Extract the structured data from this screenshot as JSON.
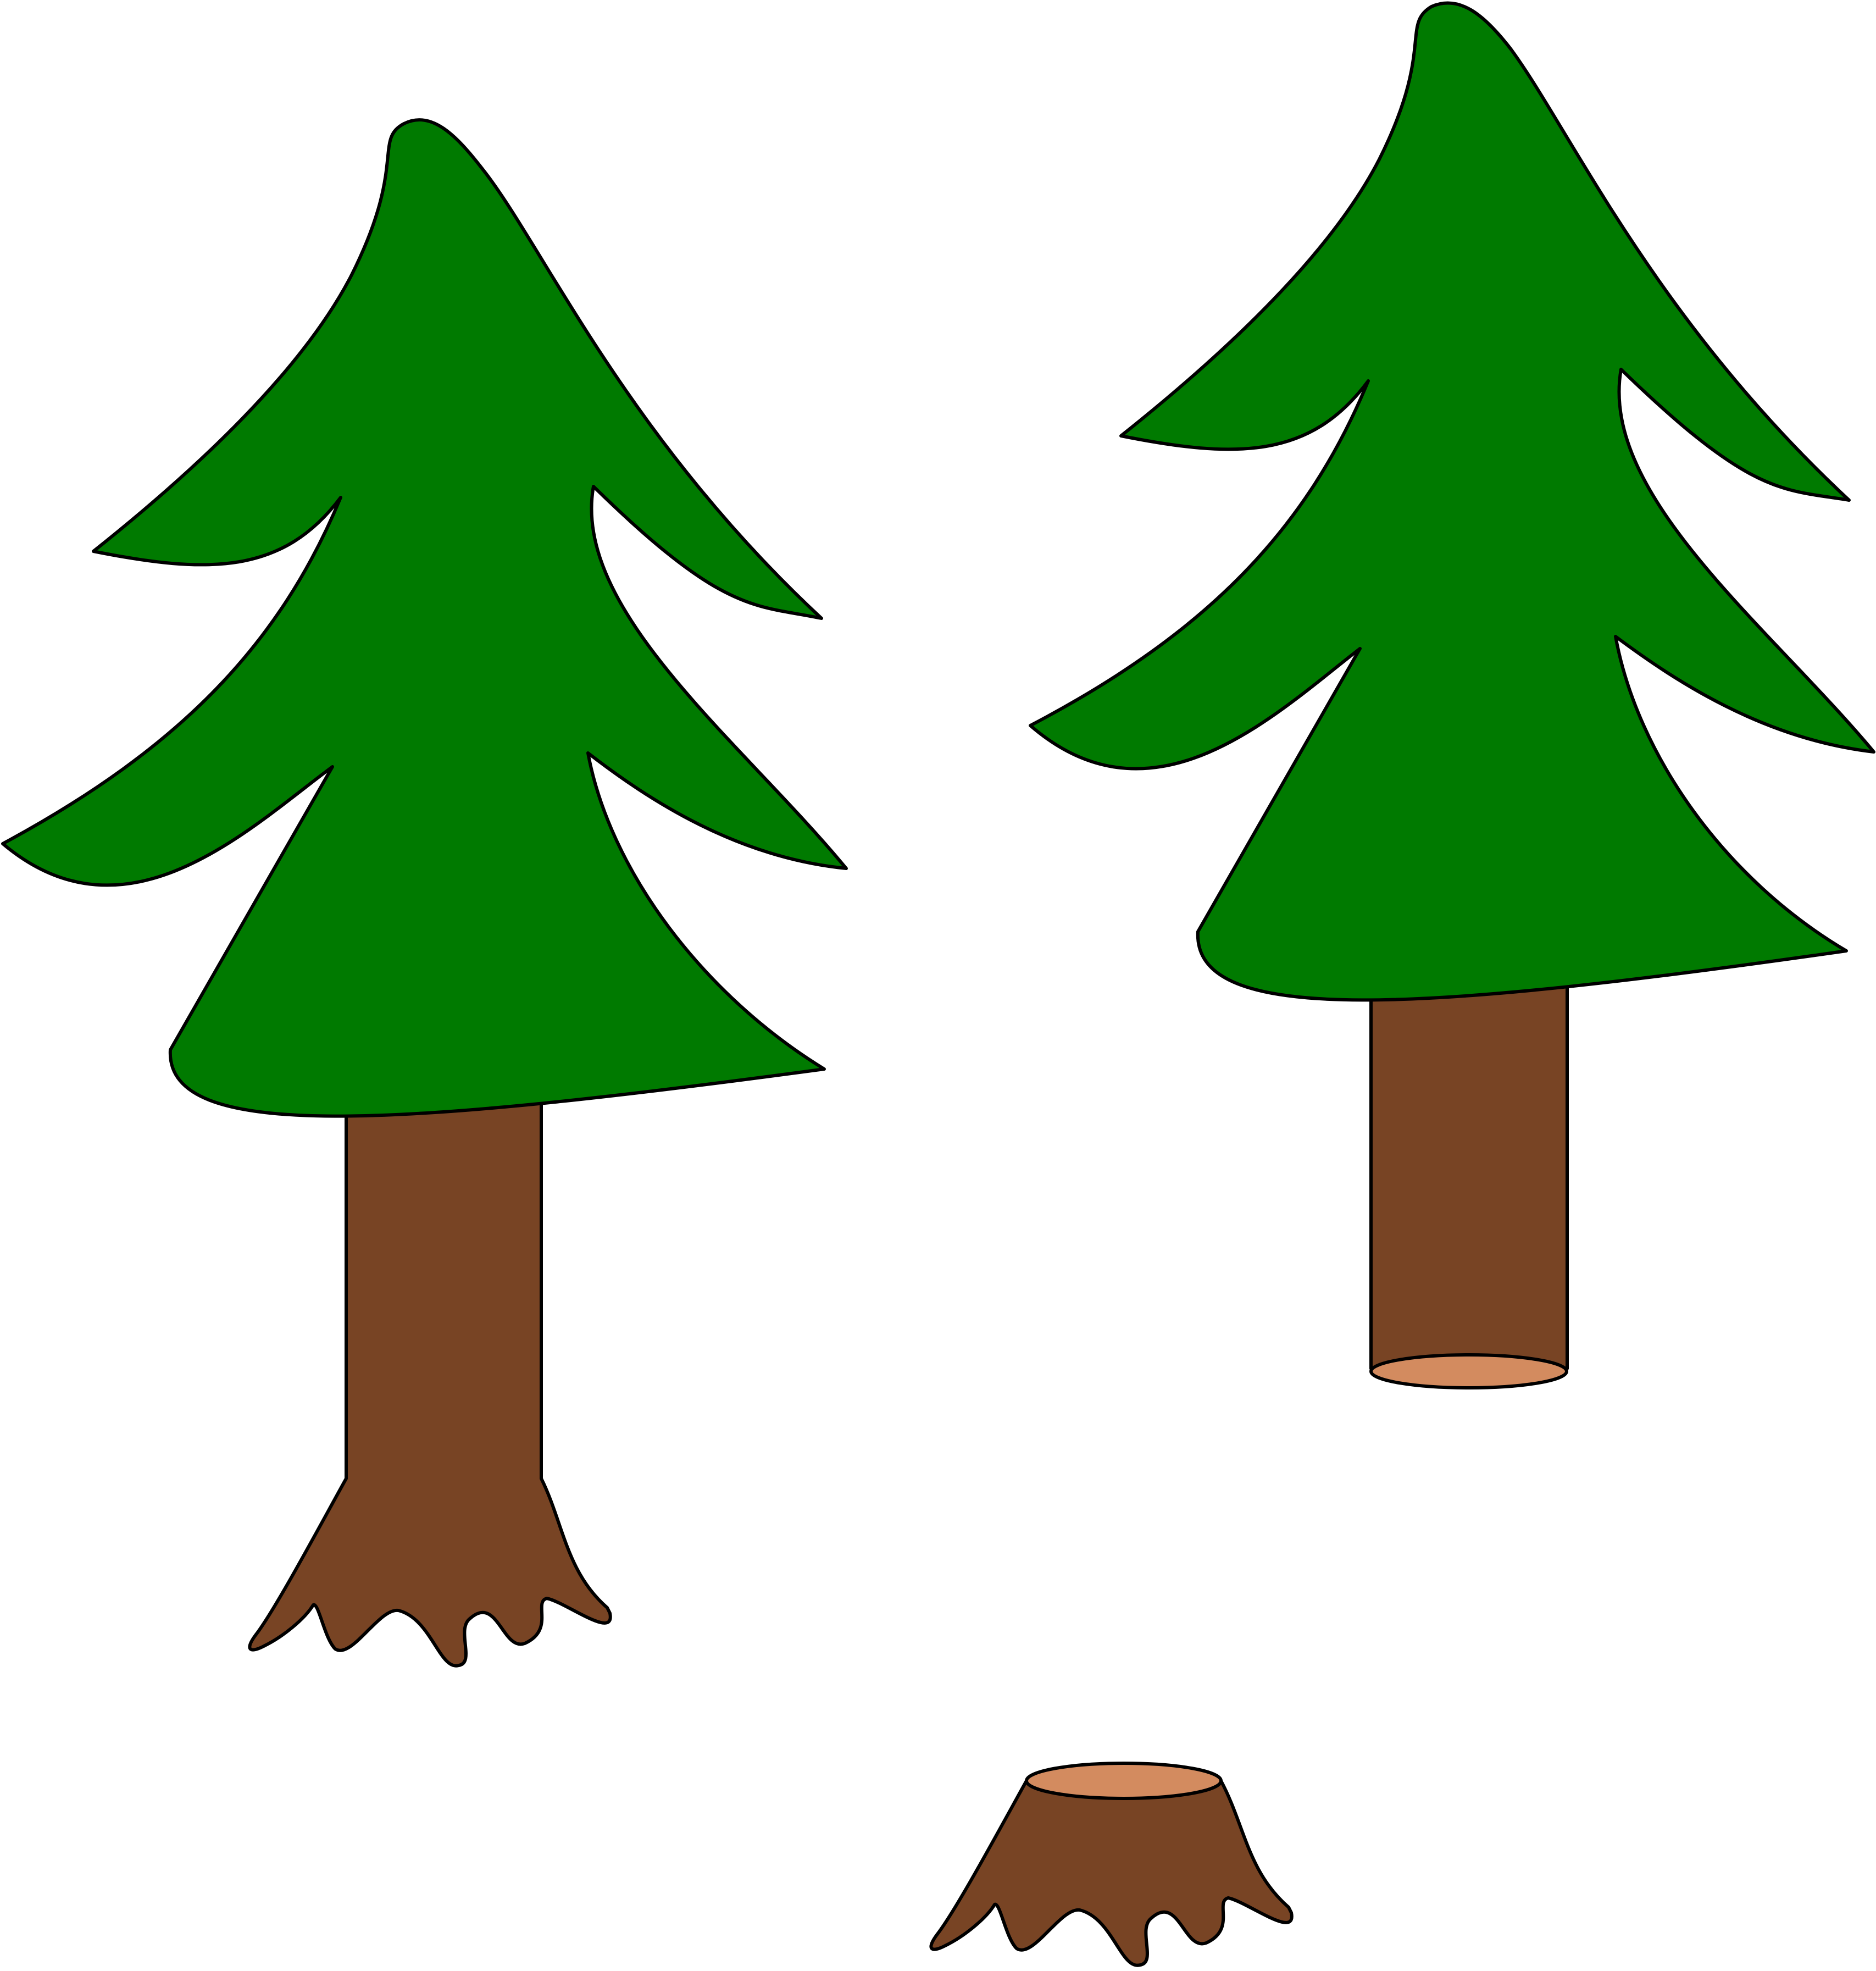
{
  "scene": {
    "background_color": "#ffffff",
    "outline_color": "#000000",
    "foliage_color": "#007a00",
    "bark_color": "#784424",
    "cut_wood_color": "#d38b5f",
    "items": [
      {
        "id": "tree-with-roots",
        "icon": "pine-tree-with-roots"
      },
      {
        "id": "tree-cut-trunk",
        "icon": "pine-tree-cut-trunk"
      },
      {
        "id": "tree-stump",
        "icon": "tree-stump"
      }
    ]
  }
}
